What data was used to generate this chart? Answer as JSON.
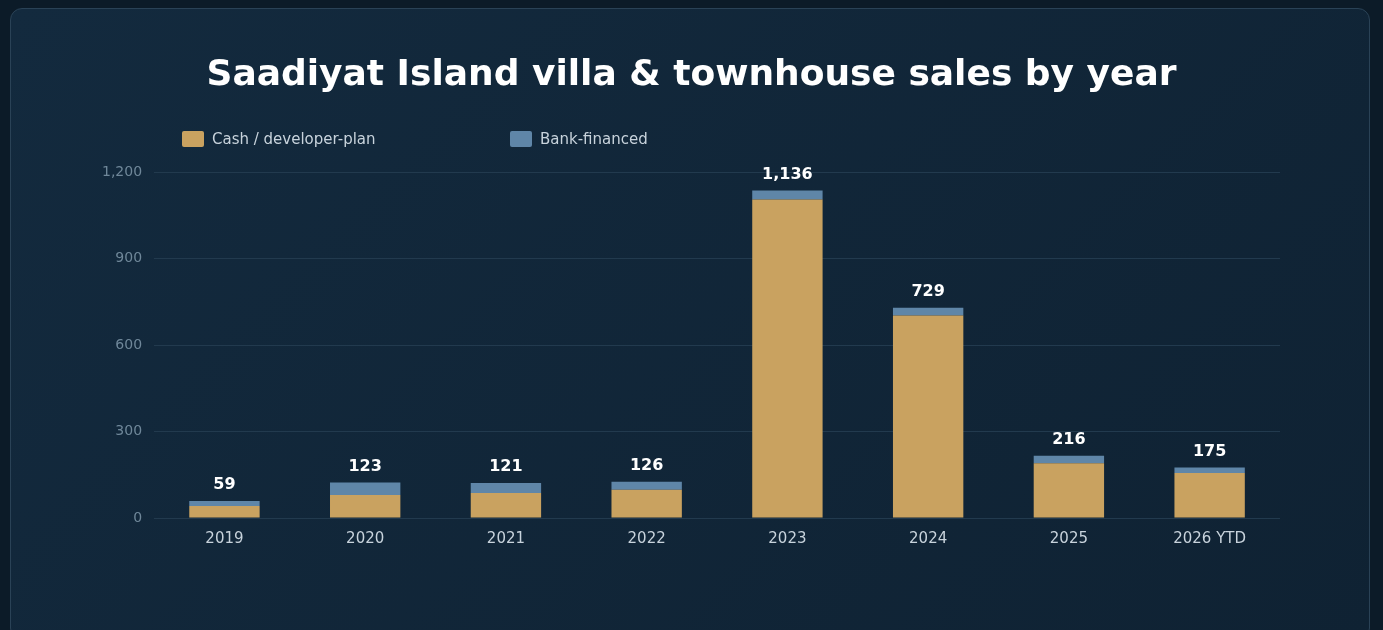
{
  "chart_data": {
    "type": "bar",
    "title": "Saadiyat Island villa & townhouse sales by year",
    "categories": [
      "2019",
      "2020",
      "2021",
      "2022",
      "2023",
      "2024",
      "2025",
      "2026 YTD"
    ],
    "series": [
      {
        "name": "Cash / developer-plan",
        "color": "#c9a260",
        "values": [
          42,
          80,
          87,
          98,
          1105,
          702,
          190,
          156
        ]
      },
      {
        "name": "Bank-financed",
        "color": "#5f86a8",
        "values": [
          17,
          43,
          34,
          28,
          31,
          27,
          26,
          19
        ]
      }
    ],
    "stacked": true,
    "totals": [
      "59",
      "123",
      "121",
      "126",
      "1,136",
      "729",
      "216",
      "175"
    ],
    "ylim": [
      0,
      1200
    ],
    "yticks": [
      0,
      300,
      600,
      900,
      {
        "value": 1200,
        "label": "1,200"
      }
    ],
    "grid": "y",
    "legend": "top left"
  }
}
